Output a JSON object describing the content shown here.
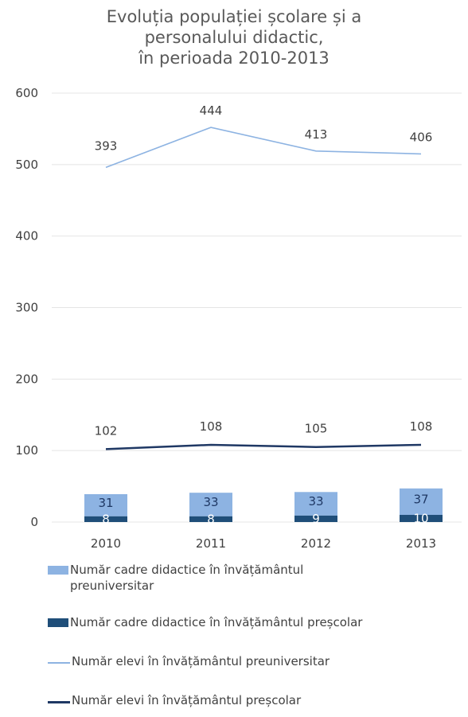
{
  "chart_data": {
    "type": "bar",
    "title": [
      "Evoluția populației școlare și a",
      "personalului didactic,",
      "în perioada 2010-2013"
    ],
    "categories": [
      "2010",
      "2011",
      "2012",
      "2013"
    ],
    "ylim": [
      0,
      600
    ],
    "yticks": [
      "0",
      "100",
      "200",
      "300",
      "400",
      "500",
      "600"
    ],
    "grid": true,
    "legend_position": "bottom",
    "series": [
      {
        "name": "Număr cadre didactice în învățământul preuniversitar",
        "type": "stacked-bar",
        "values": [
          31,
          33,
          33,
          37
        ],
        "color": "#8db3e2"
      },
      {
        "name": "Număr cadre didactice în învățământul preșcolar",
        "type": "stacked-bar",
        "values": [
          8,
          8,
          9,
          10
        ],
        "color": "#1f4e79"
      },
      {
        "name": "Număr elevi în învățământul preuniversitar",
        "type": "line",
        "values": [
          393,
          444,
          413,
          406
        ],
        "plotted": [
          496,
          552,
          519,
          515
        ],
        "color": "#8db3e2"
      },
      {
        "name": "Număr elevi în învățământul preșcolar",
        "type": "line",
        "values": [
          102,
          108,
          105,
          108
        ],
        "color": "#1f3864"
      }
    ]
  }
}
